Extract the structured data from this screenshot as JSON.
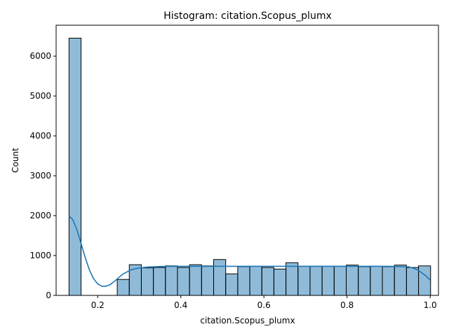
{
  "chart_data": {
    "type": "bar",
    "title": "Histogram: citation.Scopus_plumx",
    "xlabel": "citation.Scopus_plumx",
    "ylabel": "Count",
    "xlim": [
      0.1,
      1.02
    ],
    "ylim": [
      0,
      6775
    ],
    "xticks": [
      0.2,
      0.4,
      0.6,
      0.8,
      1.0
    ],
    "xtick_labels": [
      "0.2",
      "0.4",
      "0.6",
      "0.8",
      "1.0"
    ],
    "yticks": [
      0,
      1000,
      2000,
      3000,
      4000,
      5000,
      6000
    ],
    "ytick_labels": [
      "0",
      "1000",
      "2000",
      "3000",
      "4000",
      "5000",
      "6000"
    ],
    "grid": false,
    "series": [
      {
        "kind": "histogram",
        "color": "#1f77b4",
        "bins": [
          {
            "x0": 0.131,
            "x1": 0.16,
            "count": 6450
          },
          {
            "x0": 0.16,
            "x1": 0.189,
            "count": 0
          },
          {
            "x0": 0.189,
            "x1": 0.218,
            "count": 0
          },
          {
            "x0": 0.218,
            "x1": 0.247,
            "count": 0
          },
          {
            "x0": 0.247,
            "x1": 0.276,
            "count": 400
          },
          {
            "x0": 0.276,
            "x1": 0.305,
            "count": 770
          },
          {
            "x0": 0.305,
            "x1": 0.334,
            "count": 690
          },
          {
            "x0": 0.334,
            "x1": 0.363,
            "count": 700
          },
          {
            "x0": 0.363,
            "x1": 0.392,
            "count": 740
          },
          {
            "x0": 0.392,
            "x1": 0.421,
            "count": 700
          },
          {
            "x0": 0.421,
            "x1": 0.45,
            "count": 770
          },
          {
            "x0": 0.45,
            "x1": 0.479,
            "count": 740
          },
          {
            "x0": 0.479,
            "x1": 0.508,
            "count": 900
          },
          {
            "x0": 0.508,
            "x1": 0.537,
            "count": 540
          },
          {
            "x0": 0.537,
            "x1": 0.566,
            "count": 720
          },
          {
            "x0": 0.566,
            "x1": 0.595,
            "count": 730
          },
          {
            "x0": 0.595,
            "x1": 0.624,
            "count": 700
          },
          {
            "x0": 0.624,
            "x1": 0.653,
            "count": 660
          },
          {
            "x0": 0.653,
            "x1": 0.682,
            "count": 820
          },
          {
            "x0": 0.682,
            "x1": 0.711,
            "count": 730
          },
          {
            "x0": 0.711,
            "x1": 0.74,
            "count": 730
          },
          {
            "x0": 0.74,
            "x1": 0.769,
            "count": 730
          },
          {
            "x0": 0.769,
            "x1": 0.798,
            "count": 730
          },
          {
            "x0": 0.798,
            "x1": 0.827,
            "count": 760
          },
          {
            "x0": 0.827,
            "x1": 0.856,
            "count": 720
          },
          {
            "x0": 0.856,
            "x1": 0.885,
            "count": 730
          },
          {
            "x0": 0.885,
            "x1": 0.914,
            "count": 720
          },
          {
            "x0": 0.914,
            "x1": 0.943,
            "count": 760
          },
          {
            "x0": 0.943,
            "x1": 0.972,
            "count": 700
          },
          {
            "x0": 0.972,
            "x1": 1.001,
            "count": 740
          }
        ]
      },
      {
        "kind": "kde",
        "color": "#1f77b4",
        "x": [
          0.131,
          0.14,
          0.15,
          0.16,
          0.17,
          0.18,
          0.19,
          0.2,
          0.21,
          0.22,
          0.23,
          0.24,
          0.25,
          0.26,
          0.28,
          0.3,
          0.32,
          0.35,
          0.4,
          0.5,
          0.6,
          0.7,
          0.8,
          0.9,
          0.95,
          0.97,
          0.99,
          1.0
        ],
        "y": [
          1990,
          1900,
          1650,
          1300,
          950,
          640,
          420,
          290,
          230,
          230,
          270,
          350,
          440,
          530,
          640,
          690,
          710,
          725,
          730,
          730,
          730,
          730,
          730,
          730,
          715,
          640,
          490,
          380
        ]
      }
    ]
  }
}
